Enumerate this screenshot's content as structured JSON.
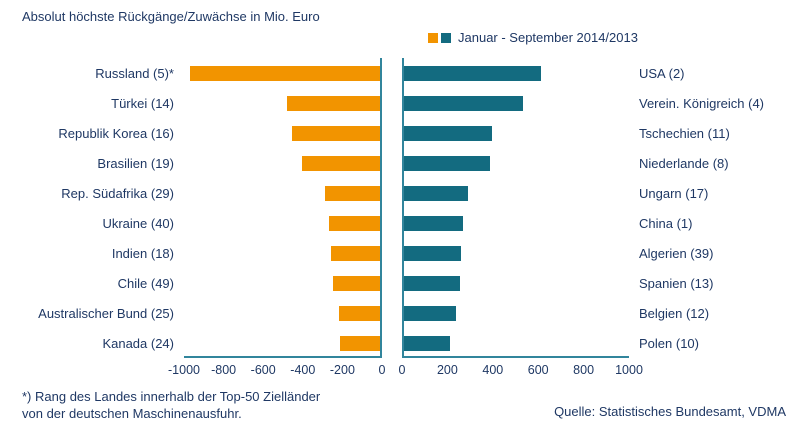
{
  "title": "Absolut höchste Rückgänge/Zuwächse in Mio. Euro",
  "legend": {
    "label": "Januar - September 2014/2013",
    "decline_color": "#F29400",
    "increase_color": "#136B80"
  },
  "footnote": {
    "line1": "*) Rang des Landes innerhalb der Top-50 Zielländer",
    "line2": "von der deutschen Maschinenausfuhr."
  },
  "source": "Quelle: Statistisches Bundesamt, VDMA",
  "chart_data": {
    "type": "bar",
    "orientation": "horizontal",
    "title": "Absolut höchste Rückgänge/Zuwächse in Mio. Euro",
    "legend_label": "Januar - September 2014/2013",
    "grid": false,
    "left": {
      "name": "Rückgänge (declines)",
      "color": "#F29400",
      "xlim": [
        -1000,
        0
      ],
      "ticks": [
        -1000,
        -800,
        -600,
        -400,
        -200,
        0
      ],
      "categories": [
        "Russland (5)*",
        "Türkei (14)",
        "Republik Korea (16)",
        "Brasilien (19)",
        "Rep. Südafrika (29)",
        "Ukraine (40)",
        "Indien (18)",
        "Chile (49)",
        "Australischer Bund (25)",
        "Kanada (24)"
      ],
      "values": [
        -970,
        -475,
        -450,
        -400,
        -280,
        -258,
        -248,
        -242,
        -207,
        -202
      ]
    },
    "right": {
      "name": "Zuwächse (increases)",
      "color": "#136B80",
      "xlim": [
        0,
        1000
      ],
      "ticks": [
        0,
        200,
        400,
        600,
        800,
        1000
      ],
      "categories": [
        "USA (2)",
        "Verein. Königreich (4)",
        "Tschechien (11)",
        "Niederlande (8)",
        "Ungarn (17)",
        "China (1)",
        "Algerien (39)",
        "Spanien (13)",
        "Belgien (12)",
        "Polen (10)"
      ],
      "values": [
        610,
        530,
        390,
        380,
        285,
        262,
        252,
        247,
        232,
        205
      ]
    }
  }
}
